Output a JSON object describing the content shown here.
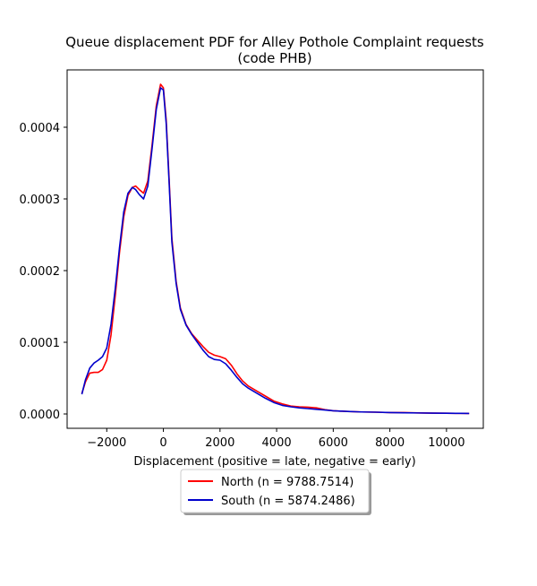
{
  "chart_data": {
    "type": "line",
    "title_line1": "Queue displacement PDF for Alley Pothole Complaint  requests",
    "title_line2": "(code PHB)",
    "xlabel": "Displacement (positive = late, negative = early)",
    "ylabel": "",
    "xlim": [
      -3400,
      11300
    ],
    "ylim": [
      -2e-05,
      0.00048
    ],
    "xticks": [
      -2000,
      0,
      2000,
      4000,
      6000,
      8000,
      10000
    ],
    "xtick_labels": [
      "−2000",
      "0",
      "2000",
      "4000",
      "6000",
      "8000",
      "10000"
    ],
    "yticks": [
      0.0,
      0.0001,
      0.0002,
      0.0003,
      0.0004
    ],
    "ytick_labels": [
      "0.0000",
      "0.0001",
      "0.0002",
      "0.0003",
      "0.0004"
    ],
    "grid": false,
    "legend_position": "below-center",
    "series": [
      {
        "name": "North (n = 9788.7514)",
        "color": "#ff0000",
        "points": [
          [
            -2880,
            2.85e-05
          ],
          [
            -2750,
            4.5e-05
          ],
          [
            -2600,
            5.7e-05
          ],
          [
            -2450,
            5.8e-05
          ],
          [
            -2300,
            5.8e-05
          ],
          [
            -2150,
            6.2e-05
          ],
          [
            -2000,
            7.5e-05
          ],
          [
            -1850,
            0.00011
          ],
          [
            -1700,
            0.000165
          ],
          [
            -1550,
            0.000225
          ],
          [
            -1400,
            0.000275
          ],
          [
            -1250,
            0.000305
          ],
          [
            -1100,
            0.000316
          ],
          [
            -980,
            0.000318
          ],
          [
            -850,
            0.000313
          ],
          [
            -700,
            0.000308
          ],
          [
            -550,
            0.000325
          ],
          [
            -400,
            0.000375
          ],
          [
            -250,
            0.00043
          ],
          [
            -100,
            0.00046
          ],
          [
            0,
            0.000455
          ],
          [
            100,
            0.00041
          ],
          [
            200,
            0.00033
          ],
          [
            300,
            0.000245
          ],
          [
            450,
            0.000185
          ],
          [
            600,
            0.000148
          ],
          [
            800,
            0.000125
          ],
          [
            1000,
            0.000112
          ],
          [
            1200,
            0.000103
          ],
          [
            1400,
            9.4e-05
          ],
          [
            1600,
            8.6e-05
          ],
          [
            1800,
            8.2e-05
          ],
          [
            2000,
            8e-05
          ],
          [
            2200,
            7.7e-05
          ],
          [
            2400,
            6.8e-05
          ],
          [
            2600,
            5.6e-05
          ],
          [
            2800,
            4.6e-05
          ],
          [
            3000,
            3.9e-05
          ],
          [
            3300,
            3.2e-05
          ],
          [
            3600,
            2.5e-05
          ],
          [
            3900,
            1.8e-05
          ],
          [
            4200,
            1.4e-05
          ],
          [
            4500,
            1.1e-05
          ],
          [
            4800,
            1e-05
          ],
          [
            5100,
            9.5e-06
          ],
          [
            5400,
            8.5e-06
          ],
          [
            5700,
            6e-06
          ],
          [
            6000,
            4.5e-06
          ],
          [
            6500,
            3.5e-06
          ],
          [
            7000,
            2.8e-06
          ],
          [
            7500,
            2.5e-06
          ],
          [
            8000,
            2e-06
          ],
          [
            8500,
            1.9e-06
          ],
          [
            9000,
            1.5e-06
          ],
          [
            9500,
            1.2e-06
          ],
          [
            10000,
            1e-06
          ],
          [
            10500,
            8e-07
          ],
          [
            10800,
            7e-07
          ]
        ]
      },
      {
        "name": "South (n = 5874.2486)",
        "color": "#0000cc",
        "points": [
          [
            -2880,
            2.75e-05
          ],
          [
            -2750,
            4.8e-05
          ],
          [
            -2600,
            6.4e-05
          ],
          [
            -2450,
            7.1e-05
          ],
          [
            -2300,
            7.5e-05
          ],
          [
            -2150,
            8e-05
          ],
          [
            -2000,
            9.2e-05
          ],
          [
            -1850,
            0.000125
          ],
          [
            -1700,
            0.000175
          ],
          [
            -1550,
            0.000232
          ],
          [
            -1400,
            0.000282
          ],
          [
            -1250,
            0.000308
          ],
          [
            -1100,
            0.000316
          ],
          [
            -980,
            0.000313
          ],
          [
            -850,
            0.000306
          ],
          [
            -700,
            0.0003
          ],
          [
            -550,
            0.000318
          ],
          [
            -400,
            0.00037
          ],
          [
            -250,
            0.000425
          ],
          [
            -100,
            0.000455
          ],
          [
            0,
            0.000452
          ],
          [
            100,
            0.000405
          ],
          [
            200,
            0.000325
          ],
          [
            300,
            0.00024
          ],
          [
            450,
            0.000182
          ],
          [
            600,
            0.000146
          ],
          [
            800,
            0.000124
          ],
          [
            1000,
            0.000111
          ],
          [
            1200,
            0.0001
          ],
          [
            1400,
            8.9e-05
          ],
          [
            1600,
            8e-05
          ],
          [
            1800,
            7.6e-05
          ],
          [
            2000,
            7.5e-05
          ],
          [
            2200,
            7e-05
          ],
          [
            2400,
            6.1e-05
          ],
          [
            2600,
            5.1e-05
          ],
          [
            2800,
            4.2e-05
          ],
          [
            3000,
            3.6e-05
          ],
          [
            3300,
            2.9e-05
          ],
          [
            3600,
            2.2e-05
          ],
          [
            3900,
            1.6e-05
          ],
          [
            4200,
            1.2e-05
          ],
          [
            4500,
            1e-05
          ],
          [
            4800,
            8.5e-06
          ],
          [
            5100,
            7.5e-06
          ],
          [
            5400,
            6.5e-06
          ],
          [
            5700,
            5.5e-06
          ],
          [
            6000,
            4.5e-06
          ],
          [
            6500,
            3.5e-06
          ],
          [
            7000,
            2.8e-06
          ],
          [
            7500,
            2.5e-06
          ],
          [
            8000,
            2e-06
          ],
          [
            8500,
            1.7e-06
          ],
          [
            9000,
            1.4e-06
          ],
          [
            9500,
            1.2e-06
          ],
          [
            10000,
            1e-06
          ],
          [
            10500,
            8e-07
          ],
          [
            10800,
            7e-07
          ]
        ]
      }
    ]
  }
}
